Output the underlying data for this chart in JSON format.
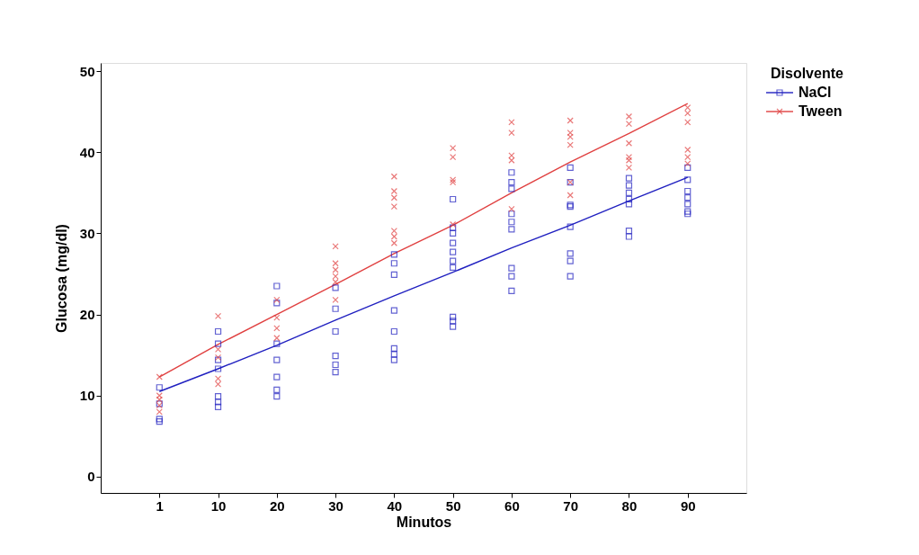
{
  "chart_data": {
    "type": "scatter",
    "xlabel": "Minutos",
    "ylabel": "Glucosa (mg/dl)",
    "legend_title": "Disolvente",
    "legend": "right",
    "grid": false,
    "categories": [
      "1",
      "10",
      "20",
      "30",
      "40",
      "50",
      "60",
      "70",
      "80",
      "90"
    ],
    "ylim": [
      -2,
      51
    ],
    "yticks": [
      0,
      10,
      20,
      30,
      40,
      50
    ],
    "series": [
      {
        "name": "NaCl",
        "type": "line",
        "color": "#2020c0",
        "values": [
          10.5,
          13.3,
          16.2,
          19.3,
          22.3,
          25.2,
          28.2,
          31.0,
          34.0,
          36.9
        ]
      },
      {
        "name": "Tween",
        "type": "line",
        "color": "#e04040",
        "values": [
          12.3,
          16.3,
          20.0,
          23.7,
          27.5,
          31.0,
          35.0,
          38.8,
          42.3,
          46.0
        ]
      },
      {
        "color": "#2020c0",
        "marker": "square",
        "x": [
          "1",
          "1",
          "1",
          "1",
          "10",
          "10",
          "10",
          "10",
          "10",
          "10",
          "10",
          "20",
          "20",
          "20",
          "20",
          "20",
          "20",
          "20",
          "30",
          "30",
          "30",
          "30",
          "30",
          "30",
          "40",
          "40",
          "40",
          "40",
          "40",
          "40",
          "40",
          "40",
          "50",
          "50",
          "50",
          "50",
          "50",
          "50",
          "50",
          "50",
          "50",
          "50",
          "60",
          "60",
          "60",
          "60",
          "60",
          "60",
          "60",
          "60",
          "60",
          "70",
          "70",
          "70",
          "70",
          "70",
          "70",
          "70",
          "70",
          "80",
          "80",
          "80",
          "80",
          "80",
          "80",
          "80",
          "90",
          "90",
          "90",
          "90",
          "90",
          "90",
          "90"
        ],
        "values": [
          11.0,
          9.0,
          7.1,
          6.8,
          17.9,
          16.4,
          14.4,
          13.3,
          9.9,
          9.2,
          8.6,
          23.5,
          21.4,
          16.4,
          14.4,
          12.3,
          10.7,
          9.9,
          23.3,
          20.7,
          17.9,
          14.9,
          13.8,
          12.9,
          27.4,
          26.3,
          24.9,
          20.5,
          17.9,
          15.8,
          15.1,
          14.4,
          34.2,
          30.7,
          30.0,
          28.8,
          27.7,
          26.6,
          25.8,
          19.7,
          19.2,
          18.5,
          37.5,
          36.3,
          35.5,
          32.4,
          31.4,
          30.5,
          25.7,
          24.7,
          22.9,
          38.1,
          36.3,
          33.5,
          33.3,
          30.8,
          27.5,
          26.6,
          24.7,
          36.8,
          35.9,
          35.0,
          34.2,
          33.6,
          30.3,
          29.6,
          38.1,
          36.6,
          35.2,
          34.4,
          33.6,
          32.7,
          32.4
        ]
      },
      {
        "color": "#e04040",
        "marker": "cross",
        "x": [
          "1",
          "1",
          "1",
          "1",
          "1",
          "10",
          "10",
          "10",
          "10",
          "10",
          "20",
          "20",
          "20",
          "20",
          "30",
          "30",
          "30",
          "30",
          "30",
          "30",
          "40",
          "40",
          "40",
          "40",
          "40",
          "40",
          "40",
          "50",
          "50",
          "50",
          "50",
          "50",
          "60",
          "60",
          "60",
          "60",
          "60",
          "70",
          "70",
          "70",
          "70",
          "70",
          "70",
          "80",
          "80",
          "80",
          "80",
          "80",
          "80",
          "90",
          "90",
          "90",
          "90",
          "90",
          "90"
        ],
        "values": [
          12.3,
          10.0,
          9.5,
          8.8,
          8.0,
          19.8,
          15.7,
          14.7,
          12.1,
          11.4,
          21.8,
          19.6,
          18.3,
          17.1,
          28.4,
          26.3,
          25.5,
          24.7,
          24.0,
          21.8,
          37.0,
          35.2,
          34.4,
          33.3,
          30.3,
          29.6,
          28.8,
          40.5,
          39.4,
          36.6,
          36.3,
          31.1,
          43.7,
          42.4,
          39.6,
          39.0,
          33.0,
          43.9,
          42.4,
          41.9,
          40.9,
          36.3,
          34.7,
          44.4,
          43.5,
          41.1,
          39.4,
          39.0,
          38.1,
          45.5,
          44.8,
          43.7,
          40.3,
          39.4,
          38.6
        ]
      }
    ]
  }
}
